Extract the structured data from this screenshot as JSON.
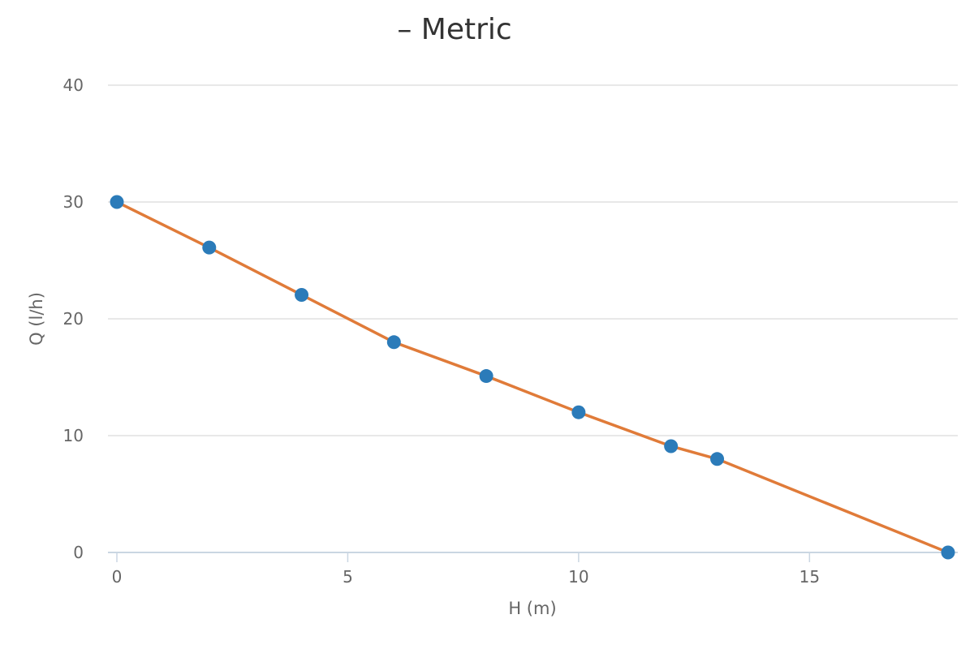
{
  "chart_data": {
    "type": "line",
    "title": "– Metric",
    "xlabel": "H (m)",
    "ylabel": "Q (l/h)",
    "xlim": [
      0,
      18
    ],
    "ylim": [
      0,
      40
    ],
    "x_ticks": [
      0,
      5,
      10,
      15
    ],
    "y_ticks": [
      0,
      10,
      20,
      30,
      40
    ],
    "grid": "horizontal",
    "legend": "none",
    "series": [
      {
        "x": [
          0,
          2,
          4,
          6,
          8,
          10,
          12,
          13,
          18
        ],
        "y": [
          30,
          26.1,
          22.05,
          18,
          15.1,
          12,
          9.1,
          8,
          0
        ]
      }
    ],
    "colors": {
      "line": "#e07b39",
      "marker": "#2b7bb9",
      "grid": "#e0e0e0",
      "axis": "#cad6e2"
    }
  }
}
